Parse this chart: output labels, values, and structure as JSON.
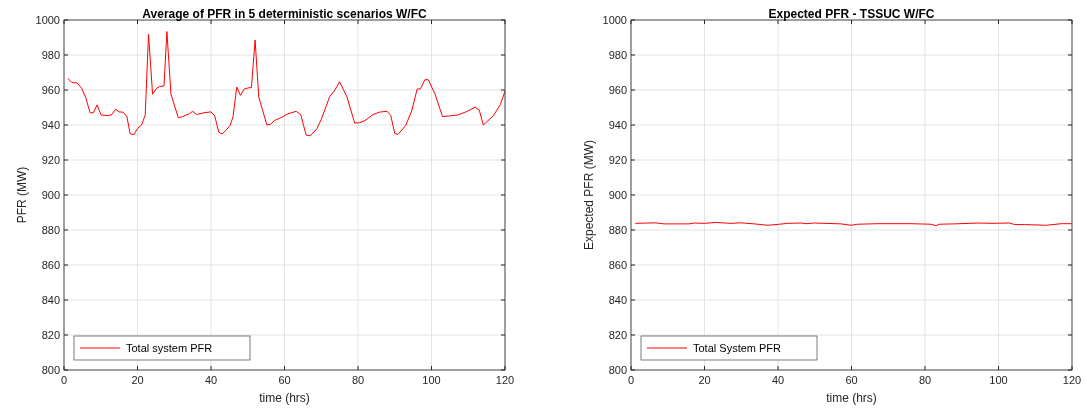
{
  "chart_data": [
    {
      "type": "line",
      "title": "Average of PFR in 5 deterministic scenarios W/FC",
      "xlabel": "time (hrs)",
      "ylabel": "PFR (MW)",
      "xlim": [
        0,
        120
      ],
      "ylim": [
        800,
        1000
      ],
      "xticks": [
        0,
        20,
        40,
        60,
        80,
        100,
        120
      ],
      "yticks": [
        800,
        820,
        840,
        860,
        880,
        900,
        920,
        940,
        960,
        980,
        1000
      ],
      "grid": true,
      "legend": "bottom left",
      "line_style": "solid",
      "marker": "none",
      "series": [
        {
          "name": "Total system PFR",
          "color": "#ff0000",
          "x": [
            1.1,
            2.1,
            3.6,
            4.8,
            5.9,
            7.1,
            8,
            9,
            10.1,
            12,
            13,
            14.1,
            15,
            16.1,
            17.1,
            18,
            19,
            20,
            21.1,
            22.1,
            23,
            24.1,
            25.2,
            26.1,
            27.2,
            28,
            29.1,
            31.1,
            32.3,
            34.1,
            35,
            36.1,
            38.1,
            40,
            41,
            42.1,
            43,
            44.1,
            45.2,
            46,
            47,
            48,
            49,
            50.1,
            51,
            52,
            53,
            55.2,
            56.2,
            57.3,
            59.3,
            60.9,
            63.2,
            64.4,
            65.9,
            67,
            68.8,
            70,
            72.3,
            73.7,
            75,
            77,
            79.1,
            80.5,
            82.1,
            84.1,
            85.9,
            87.9,
            88.9,
            90,
            90.9,
            93,
            94.6,
            96.1,
            97,
            98.2,
            99.1,
            100.9,
            103,
            105,
            107.3,
            109.6,
            111.9,
            113,
            114.1,
            116.8,
            118.7,
            120
          ],
          "values": [
            966.6,
            964.3,
            964,
            961,
            955.7,
            947,
            947,
            951.5,
            945.7,
            945.3,
            946,
            949,
            947.5,
            947.3,
            945,
            935,
            934.5,
            938,
            940,
            945.6,
            992,
            957.6,
            961,
            962,
            962.3,
            993.4,
            957.6,
            944.2,
            944.8,
            946.5,
            947.8,
            946,
            947,
            947.5,
            945.3,
            936,
            934.8,
            937,
            939.8,
            944.7,
            961.7,
            957,
            960.5,
            961.2,
            961.4,
            988.6,
            956,
            940,
            940.4,
            942.6,
            944.5,
            946.4,
            947.8,
            946,
            934.2,
            933.8,
            937.8,
            943.2,
            956.2,
            960,
            964.7,
            956,
            941.1,
            941.3,
            942.8,
            946,
            947.4,
            947.8,
            945.5,
            935.2,
            934.6,
            939.8,
            948,
            960.5,
            960.7,
            965.9,
            965.9,
            958,
            944.8,
            945.2,
            945.8,
            947.7,
            950.2,
            948.5,
            940,
            945.2,
            951.5,
            959.2
          ]
        }
      ]
    },
    {
      "type": "line",
      "title": "Expected PFR - TSSUC W/FC",
      "xlabel": "time (hrs)",
      "ylabel": "Expected PFR (MW)",
      "xlim": [
        0,
        120
      ],
      "ylim": [
        800,
        1000
      ],
      "xticks": [
        0,
        20,
        40,
        60,
        80,
        100,
        120
      ],
      "yticks": [
        800,
        820,
        840,
        860,
        880,
        900,
        920,
        940,
        960,
        980,
        1000
      ],
      "grid": true,
      "legend": "bottom left",
      "line_style": "solid",
      "marker": "none",
      "series": [
        {
          "name": "Total System PFR",
          "color": "#ff0000",
          "x": [
            1.3,
            6.7,
            9,
            15.8,
            17.2,
            19.9,
            23.1,
            27.2,
            29.9,
            33.5,
            37.2,
            40.4,
            42.6,
            46.3,
            47.6,
            49.9,
            57.2,
            59.9,
            61.7,
            67.2,
            76.2,
            81.6,
            83,
            83.9,
            88,
            94.4,
            98,
            103,
            104.4,
            107.1,
            113,
            117.1,
            119.8
          ],
          "values": [
            883.8,
            884.1,
            883.5,
            883.5,
            884,
            883.8,
            884.3,
            883.8,
            884.1,
            883.5,
            882.7,
            883.3,
            883.8,
            884,
            883.6,
            884,
            883.5,
            882.7,
            883.3,
            883.6,
            883.6,
            883.3,
            882.5,
            883.3,
            883.5,
            884,
            883.8,
            884,
            883.1,
            883.1,
            882.7,
            883.6,
            883.6
          ]
        }
      ]
    }
  ]
}
